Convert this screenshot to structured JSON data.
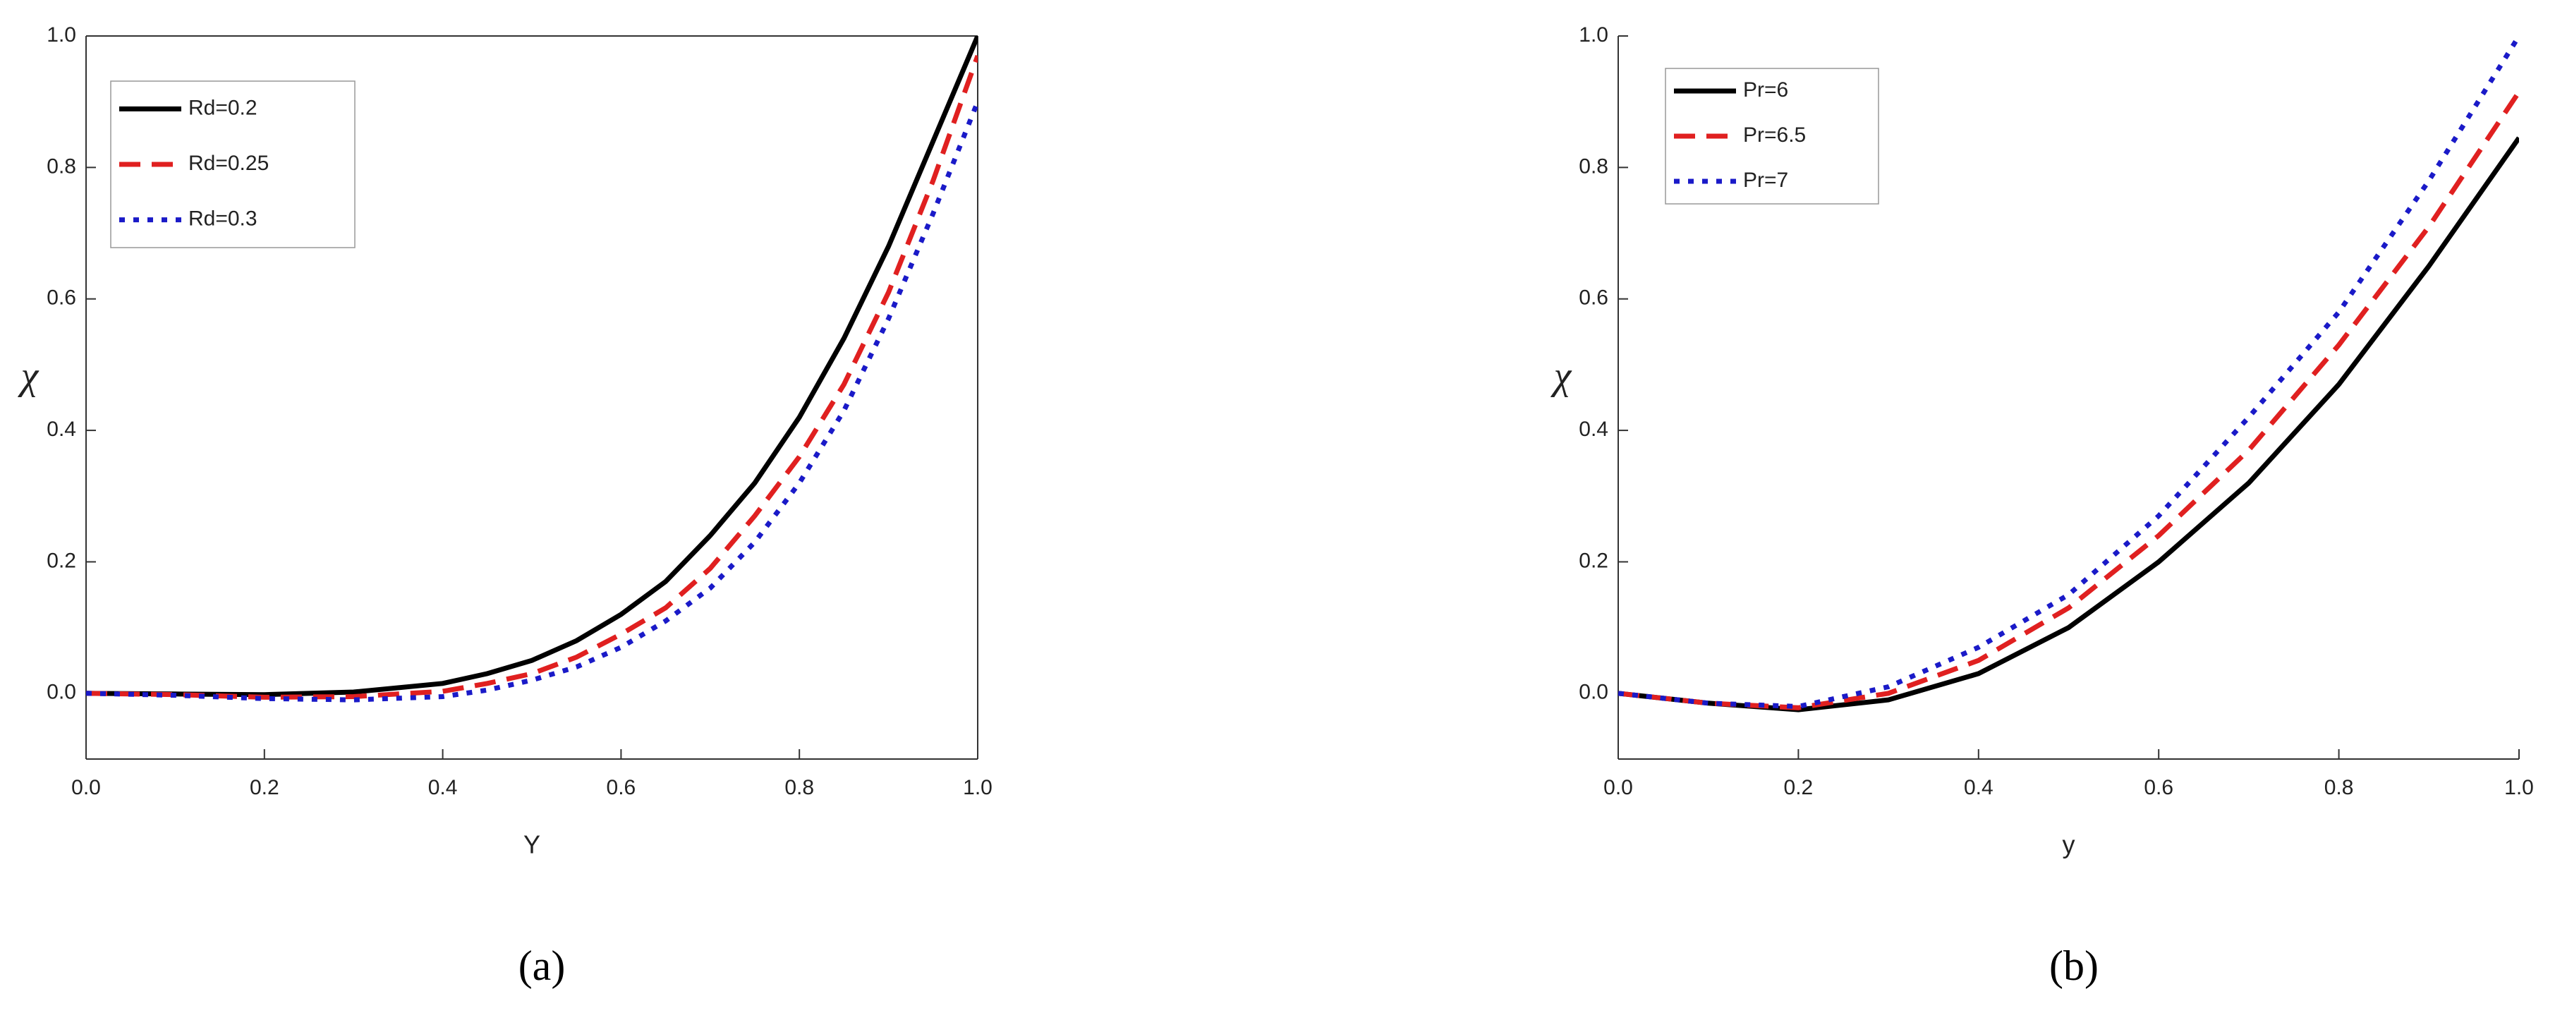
{
  "chart_data": [
    {
      "type": "line",
      "caption": "(a)",
      "xlabel": "Y",
      "ylabel": "χ",
      "xlim": [
        0,
        1
      ],
      "ylim": [
        -0.1,
        1
      ],
      "xticks": [
        {
          "value": 0,
          "label": "0.0"
        },
        0.2,
        0.4,
        0.6,
        0.8,
        {
          "value": 1,
          "label": "1.0"
        }
      ],
      "yticks": [
        {
          "value": 0,
          "label": "0.0"
        },
        0.2,
        0.4,
        0.6,
        0.8,
        {
          "value": 1,
          "label": "1.0"
        }
      ],
      "frame": "box",
      "x": [
        0,
        0.1,
        0.2,
        0.3,
        0.4,
        0.45,
        0.5,
        0.55,
        0.6,
        0.65,
        0.7,
        0.75,
        0.8,
        0.85,
        0.9,
        0.95,
        1.0
      ],
      "series": [
        {
          "name": "Rd=0.2",
          "color": "#000000",
          "dash": "solid",
          "values": [
            0,
            -0.001,
            -0.002,
            0.002,
            0.015,
            0.03,
            0.05,
            0.08,
            0.12,
            0.17,
            0.24,
            0.32,
            0.42,
            0.54,
            0.68,
            0.84,
            1.0
          ]
        },
        {
          "name": "Rd=0.25",
          "color": "#e02020",
          "dash": "dashed",
          "values": [
            0,
            -0.002,
            -0.006,
            -0.005,
            0.003,
            0.015,
            0.03,
            0.055,
            0.09,
            0.13,
            0.19,
            0.27,
            0.36,
            0.47,
            0.61,
            0.78,
            0.97
          ]
        },
        {
          "name": "Rd=0.3",
          "color": "#1a1ac8",
          "dash": "dotted",
          "values": [
            0,
            -0.003,
            -0.008,
            -0.01,
            -0.005,
            0.005,
            0.02,
            0.04,
            0.07,
            0.11,
            0.16,
            0.23,
            0.32,
            0.43,
            0.57,
            0.73,
            0.9
          ]
        }
      ]
    },
    {
      "type": "line",
      "caption": "(b)",
      "xlabel": "y",
      "ylabel": "χ",
      "xlim": [
        0,
        1
      ],
      "ylim": [
        -0.1,
        1
      ],
      "xticks": [
        {
          "value": 0,
          "label": "0.0"
        },
        0.2,
        0.4,
        0.6,
        0.8,
        {
          "value": 1,
          "label": "1.0"
        }
      ],
      "yticks": [
        {
          "value": 0,
          "label": "0.0"
        },
        0.2,
        0.4,
        0.6,
        0.8,
        {
          "value": 1,
          "label": "1.0"
        }
      ],
      "frame": "axes",
      "x": [
        0,
        0.1,
        0.2,
        0.3,
        0.4,
        0.5,
        0.6,
        0.7,
        0.8,
        0.9,
        1.0
      ],
      "series": [
        {
          "name": "Pr=6",
          "color": "#000000",
          "dash": "solid",
          "values": [
            0,
            -0.015,
            -0.025,
            -0.01,
            0.03,
            0.1,
            0.2,
            0.32,
            0.47,
            0.65,
            0.845
          ]
        },
        {
          "name": "Pr=6.5",
          "color": "#e02020",
          "dash": "dashed",
          "values": [
            0,
            -0.015,
            -0.022,
            0.0,
            0.05,
            0.13,
            0.24,
            0.37,
            0.53,
            0.71,
            0.915
          ]
        },
        {
          "name": "Pr=7",
          "color": "#1a1ac8",
          "dash": "dotted",
          "values": [
            0,
            -0.015,
            -0.02,
            0.01,
            0.07,
            0.15,
            0.27,
            0.42,
            0.58,
            0.78,
            1.0
          ]
        }
      ]
    }
  ]
}
